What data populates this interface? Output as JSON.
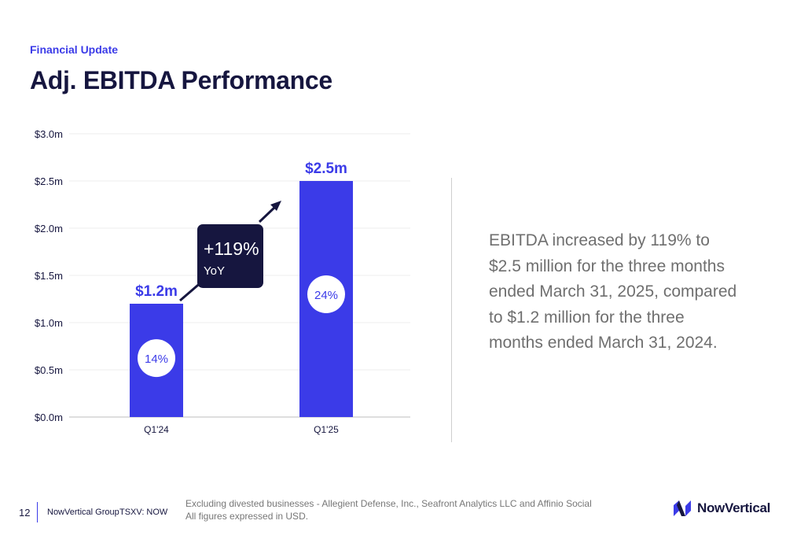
{
  "header": {
    "eyebrow": "Financial Update",
    "title": "Adj. EBITDA Performance"
  },
  "chart_data": {
    "type": "bar",
    "categories": [
      "Q1'24",
      "Q1'25"
    ],
    "values": [
      1.2,
      2.5
    ],
    "value_labels": [
      "$1.2m",
      "$2.5m"
    ],
    "margin_labels": [
      "14%",
      "24%"
    ],
    "y_ticks": [
      "$0.0m",
      "$0.5m",
      "$1.0m",
      "$1.5m",
      "$2.0m",
      "$2.5m",
      "$3.0m"
    ],
    "ylim": [
      0,
      3.0
    ],
    "grid": true,
    "growth_badge": {
      "value": "+119%",
      "label": "YoY"
    },
    "colors": {
      "bar": "#3b3be8",
      "badge": "#16163f",
      "value_label": "#3b3be8",
      "margin_label": "#3b3be8"
    }
  },
  "body": {
    "text": "EBITDA increased by 119% to $2.5 million for the three months ended March 31, 2025, compared to $1.2 million for the three months ended March 31, 2024."
  },
  "footer": {
    "page_number": "12",
    "company": "NowVertical Group",
    "ticker": "TSXV: NOW",
    "note_line1": "Excluding divested businesses - Allegient Defense, Inc., Seafront Analytics LLC and Affinio Social",
    "note_line2": "All figures expressed in USD.",
    "logo_text": "NowVertical",
    "logo_icon": "nowvertical-logo-icon"
  }
}
